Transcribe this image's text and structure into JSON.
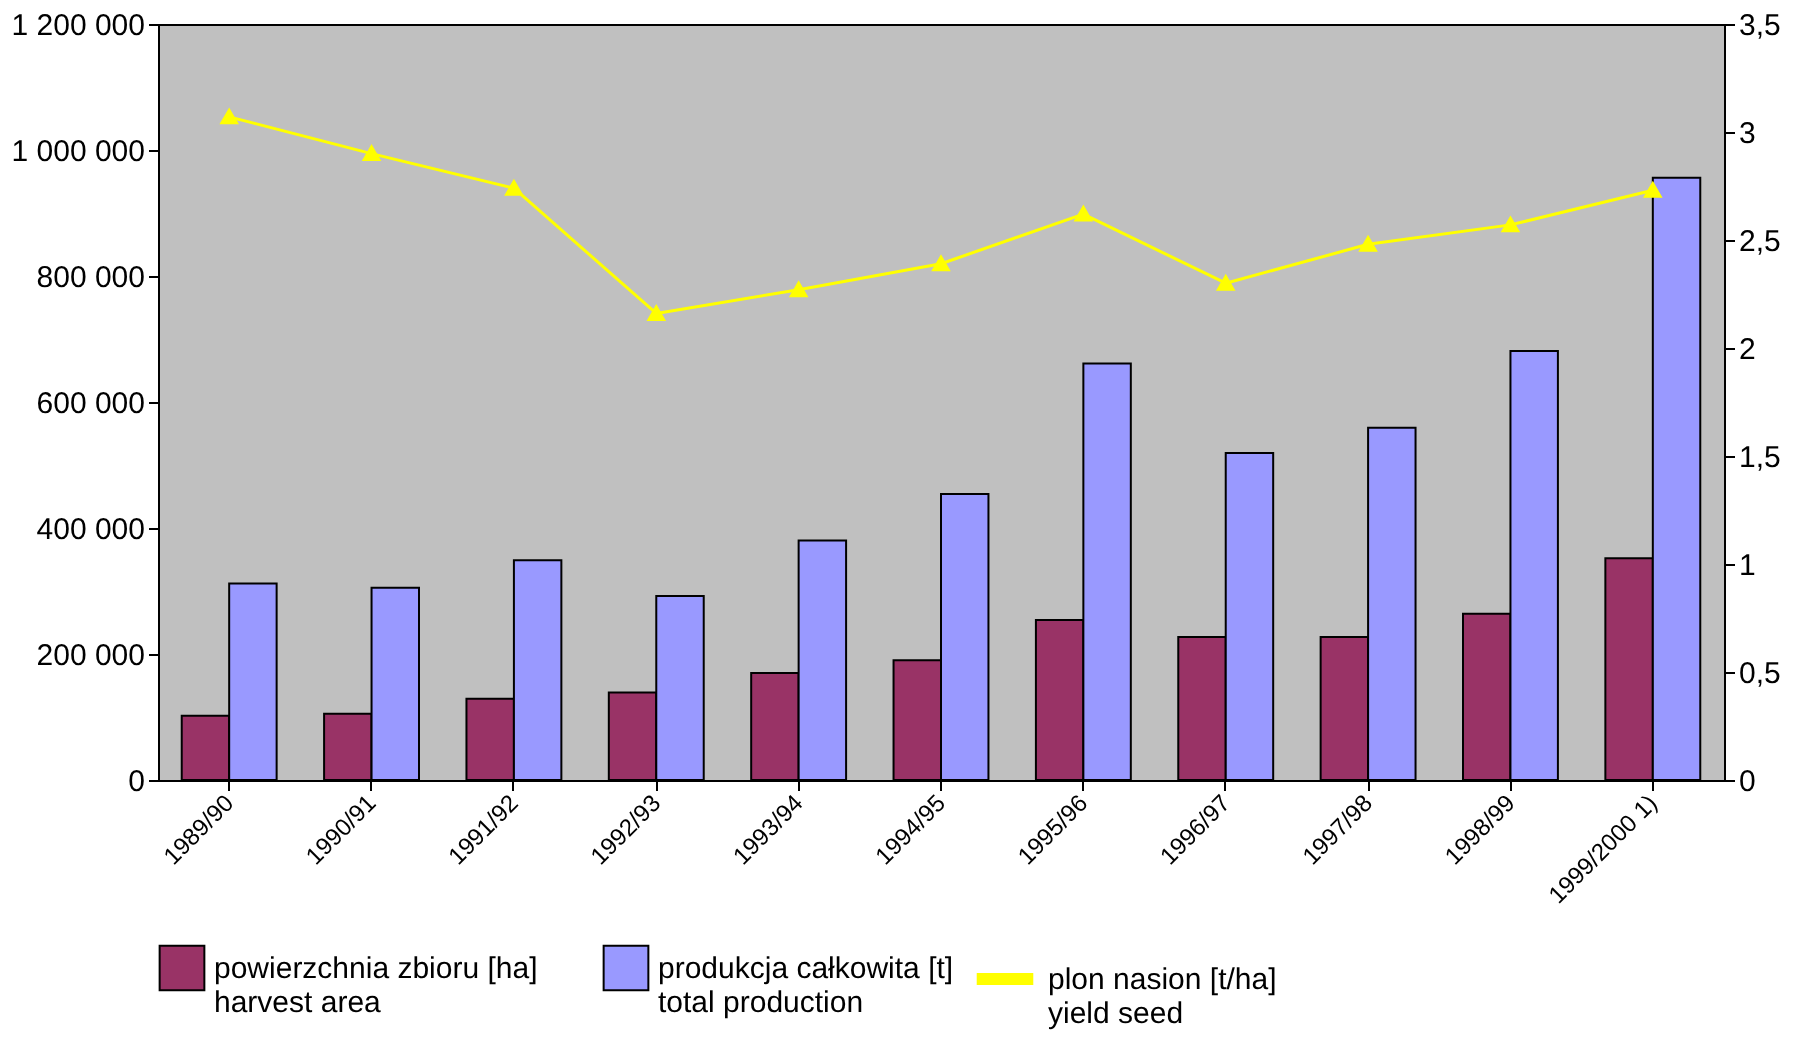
{
  "chart_data": {
    "type": "bar",
    "categories": [
      "1989/90",
      "1990/91",
      "1991/92",
      "1992/93",
      "1993/94",
      "1994/95",
      "1995/96",
      "1996/97",
      "1997/98",
      "1998/99",
      "1999/2000 1)"
    ],
    "series": [
      {
        "name": "powierzchnia zbioru [ha]\nharvest area",
        "color": "#993366",
        "values": [
          102000,
          105000,
          129000,
          139000,
          170000,
          190000,
          254000,
          227000,
          227000,
          264000,
          352000
        ]
      },
      {
        "name": "produkcja całkowita [t]\ntotal production",
        "color": "#9999ff",
        "values": [
          312000,
          305000,
          349000,
          292000,
          380000,
          454000,
          661000,
          519000,
          559000,
          681000,
          956000
        ]
      },
      {
        "name": "plon nasion [t/ha]\nyield seed",
        "type": "line",
        "axis": "y2",
        "color": "#ffff00",
        "marker": "triangle",
        "values": [
          3.07,
          2.9,
          2.74,
          2.16,
          2.27,
          2.39,
          2.62,
          2.3,
          2.48,
          2.57,
          2.73
        ]
      }
    ],
    "ylim": [
      0,
      1200000
    ],
    "yticks": [
      0,
      {
        "value": 200000,
        "label": "200 000"
      },
      {
        "value": 400000,
        "label": "400 000"
      },
      {
        "value": 600000,
        "label": "600 000"
      },
      {
        "value": 800000,
        "label": "800 000"
      },
      {
        "value": 1000000,
        "label": "1 000 000"
      },
      {
        "value": 1200000,
        "label": "1 200 000"
      }
    ],
    "y2lim": [
      0,
      3.5
    ],
    "y2ticks": [
      0,
      {
        "value": 0.5,
        "label": "0,5"
      },
      1,
      {
        "value": 1.5,
        "label": "1,5"
      },
      2,
      {
        "value": 2.5,
        "label": "2,5"
      },
      3,
      {
        "value": 3.5,
        "label": "3,5"
      }
    ],
    "legend": "bottom",
    "grid": false
  }
}
